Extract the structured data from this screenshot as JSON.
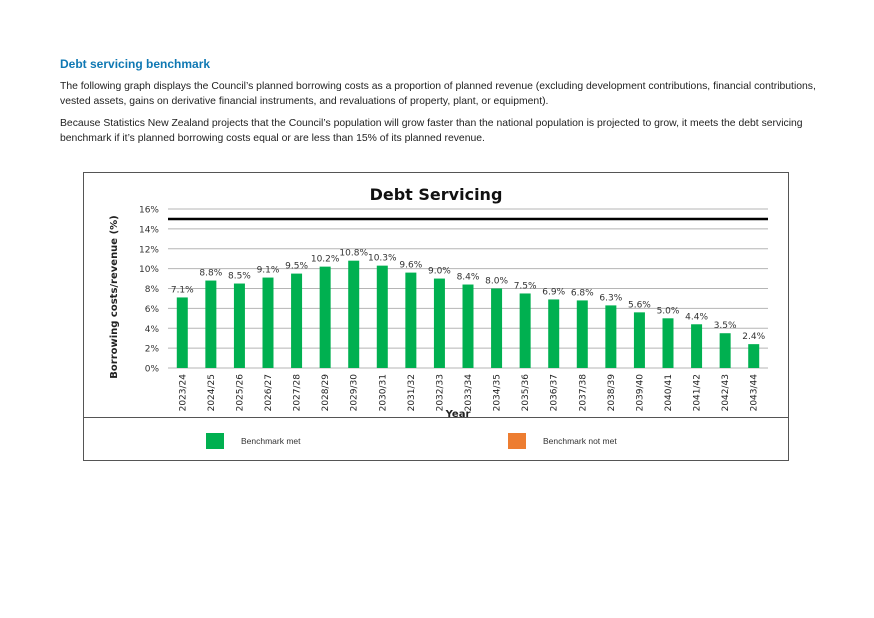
{
  "section": {
    "heading": "Debt servicing benchmark",
    "paragraph1": "The following graph displays the Council’s planned borrowing costs as a proportion of planned revenue (excluding development contributions, financial contributions, vested assets, gains on derivative financial instruments, and revaluations of property, plant, or equipment).",
    "paragraph2": "Because Statistics New Zealand projects that the Council’s population will grow faster than the national population is projected to grow, it meets the debt servicing benchmark if it’s planned borrowing costs equal or are less than 15% of its planned revenue."
  },
  "chart_data": {
    "type": "bar",
    "title": "Debt Servicing",
    "xlabel": "Year",
    "ylabel": "Borrowing costs/revenue (%)",
    "ylim": [
      0,
      16
    ],
    "yticks": [
      "0%",
      "2%",
      "4%",
      "6%",
      "8%",
      "10%",
      "12%",
      "14%",
      "16%"
    ],
    "categories": [
      "2023/24",
      "2024/25",
      "2025/26",
      "2026/27",
      "2027/28",
      "2028/29",
      "2029/30",
      "2030/31",
      "2031/32",
      "2032/33",
      "2033/34",
      "2034/35",
      "2035/36",
      "2036/37",
      "2037/38",
      "2038/39",
      "2039/40",
      "2040/41",
      "2041/42",
      "2042/43",
      "2043/44"
    ],
    "values": [
      7.1,
      8.8,
      8.5,
      9.1,
      9.5,
      10.2,
      10.8,
      10.3,
      9.6,
      9.0,
      8.4,
      8.0,
      7.5,
      6.9,
      6.8,
      6.3,
      5.6,
      5.0,
      4.4,
      3.5,
      2.4
    ],
    "data_labels": [
      "7.1%",
      "8.8%",
      "8.5%",
      "9.1%",
      "9.5%",
      "10.2%",
      "10.8%",
      "10.3%",
      "9.6%",
      "9.0%",
      "8.4%",
      "8.0%",
      "7.5%",
      "6.9%",
      "6.8%",
      "6.3%",
      "5.6%",
      "5.0%",
      "4.4%",
      "3.5%",
      "2.4%"
    ],
    "benchmark_line": 15,
    "grid": true,
    "legend_position": "bottom",
    "legend": [
      {
        "label": "Benchmark met",
        "color": "#00b050"
      },
      {
        "label": "Benchmark not met",
        "color": "#ed7d31"
      }
    ],
    "bar_color": "#00b050"
  }
}
